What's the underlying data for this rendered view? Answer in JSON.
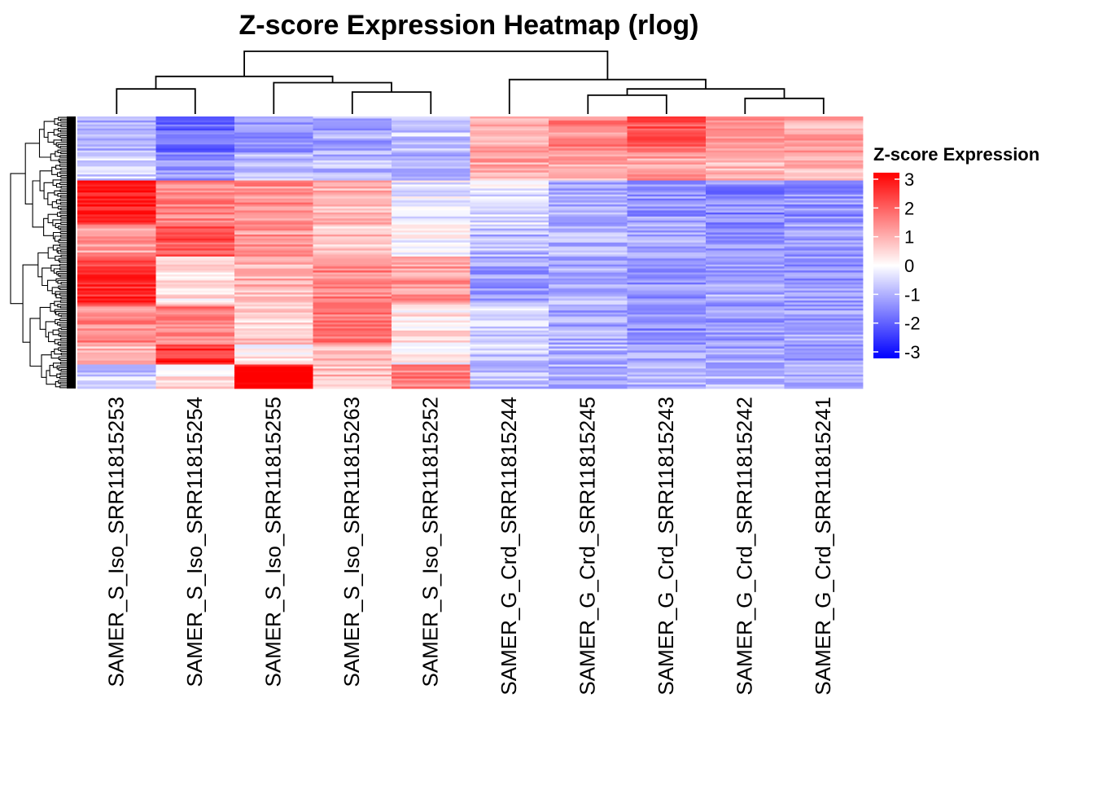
{
  "chart_data": {
    "type": "heatmap",
    "title": "Z-score Expression Heatmap (rlog)",
    "legend_title": "Z-score Expression",
    "legend_ticks": [
      3,
      2,
      1,
      0,
      -1,
      -2,
      -3
    ],
    "color_scale": {
      "min": -3,
      "mid": 0,
      "max": 3,
      "low": "#0000ff",
      "mid_color": "#ffffff",
      "high": "#ff0000"
    },
    "columns": [
      "SAMER_S_Iso_SRR11815253",
      "SAMER_S_Iso_SRR11815254",
      "SAMER_S_Iso_SRR11815255",
      "SAMER_S_Iso_SRR11815263",
      "SAMER_S_Iso_SRR11815252",
      "SAMER_G_Crd_SRR11815244",
      "SAMER_G_Crd_SRR11815245",
      "SAMER_G_Crd_SRR11815243",
      "SAMER_G_Crd_SRR11815242",
      "SAMER_G_Crd_SRR11815241"
    ],
    "column_dendrogram": [
      {
        "left": 0,
        "right": 1,
        "height": 0.4
      },
      {
        "left": 3,
        "right": 4,
        "height": 0.35
      },
      {
        "left": 2,
        "right": 11,
        "height": 0.5
      },
      {
        "left": 10,
        "right": 12,
        "height": 0.6
      },
      {
        "left": 6,
        "right": 7,
        "height": 0.3
      },
      {
        "left": 8,
        "right": 9,
        "height": 0.25
      },
      {
        "left": 14,
        "right": 15,
        "height": 0.4
      },
      {
        "left": 5,
        "right": 16,
        "height": 0.55
      },
      {
        "left": 13,
        "right": 17,
        "height": 1.0
      }
    ],
    "row_blocks": [
      {
        "rows": 18,
        "values": [
          -0.9,
          -1.8,
          -1.2,
          -1.0,
          -0.6,
          0.9,
          1.4,
          2.0,
          1.2,
          1.0
        ]
      },
      {
        "rows": 14,
        "values": [
          -0.5,
          -1.3,
          -0.7,
          -0.8,
          -0.9,
          1.0,
          0.9,
          1.1,
          0.9,
          0.8
        ]
      },
      {
        "rows": 22,
        "values": [
          2.6,
          1.5,
          1.3,
          0.9,
          -0.2,
          -0.3,
          -1.0,
          -1.2,
          -1.4,
          -1.3
        ]
      },
      {
        "rows": 16,
        "values": [
          1.1,
          2.0,
          1.2,
          0.7,
          -0.1,
          -0.8,
          -0.9,
          -1.0,
          -1.3,
          -1.1
        ]
      },
      {
        "rows": 24,
        "values": [
          2.4,
          0.3,
          0.9,
          1.5,
          1.2,
          -1.1,
          -0.9,
          -1.2,
          -1.0,
          -1.2
        ]
      },
      {
        "rows": 20,
        "values": [
          1.4,
          1.5,
          0.6,
          1.6,
          0.3,
          -0.5,
          -1.0,
          -1.4,
          -1.2,
          -1.0
        ]
      },
      {
        "rows": 10,
        "values": [
          0.8,
          2.5,
          0.2,
          0.9,
          0.1,
          -0.6,
          -0.9,
          -1.1,
          -1.0,
          -1.1
        ]
      },
      {
        "rows": 12,
        "values": [
          -0.6,
          0.4,
          3.0,
          0.8,
          1.5,
          -0.8,
          -0.9,
          -1.0,
          -0.8,
          -0.9
        ]
      }
    ]
  }
}
